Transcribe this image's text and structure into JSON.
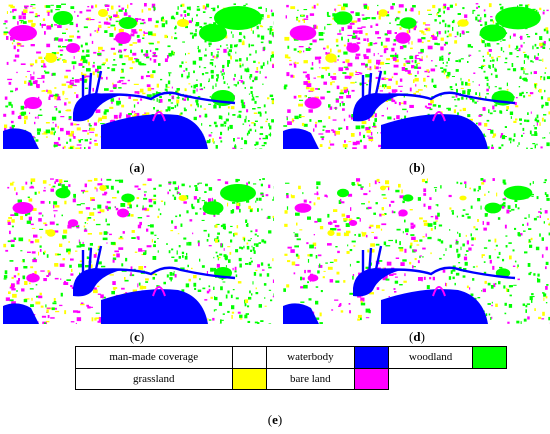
{
  "panels": [
    {
      "label": "a"
    },
    {
      "label": "b"
    },
    {
      "label": "c"
    },
    {
      "label": "d"
    }
  ],
  "figure_caption": "e",
  "legend": {
    "items": [
      {
        "label": "man-made coverage",
        "color": "#ffffff"
      },
      {
        "label": "waterbody",
        "color": "#0000ff"
      },
      {
        "label": "woodland",
        "color": "#00ff00"
      },
      {
        "label": "grassland",
        "color": "#ffff00"
      },
      {
        "label": "bare land",
        "color": "#ff00ff"
      }
    ]
  },
  "colors": {
    "water": "#0000ff",
    "woodland": "#00ff00",
    "grassland": "#ffff00",
    "bare_land": "#ff00ff",
    "man_made": "#ffffff"
  }
}
